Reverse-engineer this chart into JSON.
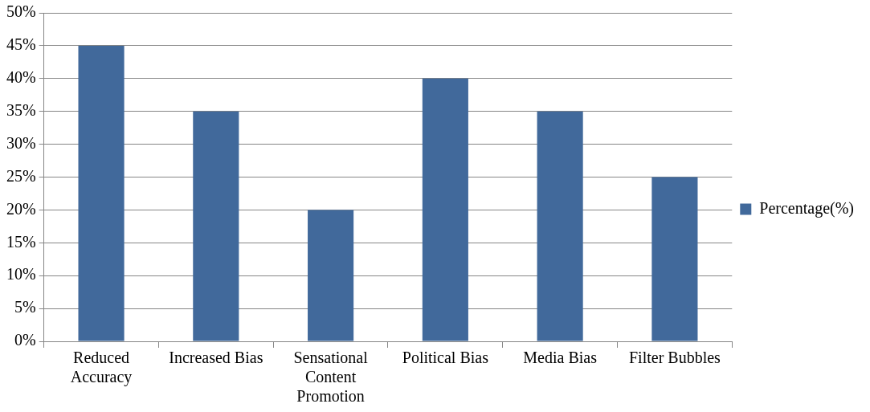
{
  "chart_data": {
    "type": "bar",
    "categories": [
      "Reduced Accuracy",
      "Increased Bias",
      "Sensational Content Promotion",
      "Political Bias",
      "Media Bias",
      "Filter Bubbles"
    ],
    "series": [
      {
        "name": "Percentage(%)",
        "color": "#41699b",
        "values": [
          45,
          35,
          20,
          40,
          35,
          25
        ]
      }
    ],
    "ylim": [
      0,
      50
    ],
    "yticks": [
      {
        "value": 0,
        "label": "0%"
      },
      {
        "value": 5,
        "label": "5%"
      },
      {
        "value": 10,
        "label": "10%"
      },
      {
        "value": 15,
        "label": "15%"
      },
      {
        "value": 20,
        "label": "20%"
      },
      {
        "value": 25,
        "label": "25%"
      },
      {
        "value": 30,
        "label": "30%"
      },
      {
        "value": 35,
        "label": "35%"
      },
      {
        "value": 40,
        "label": "40%"
      },
      {
        "value": 45,
        "label": "45%"
      },
      {
        "value": 50,
        "label": "50%"
      }
    ],
    "grid": "y",
    "legend": "right"
  }
}
